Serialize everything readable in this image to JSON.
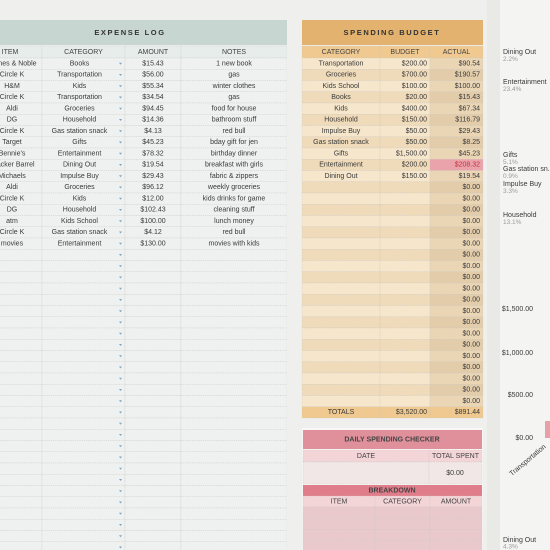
{
  "expense_log": {
    "title": "EXPENSE LOG",
    "columns": [
      "ITEM",
      "CATEGORY",
      "AMOUNT",
      "NOTES"
    ],
    "rows": [
      [
        "Barnes & Noble",
        "Books",
        "$15.43",
        "1 new book"
      ],
      [
        "Circle K",
        "Transportation",
        "$56.00",
        "gas"
      ],
      [
        "H&M",
        "Kids",
        "$55.34",
        "winter clothes"
      ],
      [
        "Circle K",
        "Transportation",
        "$34.54",
        "gas"
      ],
      [
        "Aldi",
        "Groceries",
        "$94.45",
        "food for house"
      ],
      [
        "DG",
        "Household",
        "$14.36",
        "bathroom stuff"
      ],
      [
        "Circle K",
        "Gas station snack",
        "$4.13",
        "red bull"
      ],
      [
        "Target",
        "Gifts",
        "$45.23",
        "bday gift for jen"
      ],
      [
        "Bennie's",
        "Entertainment",
        "$78.32",
        "birthday dinner"
      ],
      [
        "Cracker Barrel",
        "Dining Out",
        "$19.54",
        "breakfast with girls"
      ],
      [
        "Michaels",
        "Impulse Buy",
        "$29.43",
        "fabric & zippers"
      ],
      [
        "Aldi",
        "Groceries",
        "$96.12",
        "weekly groceries"
      ],
      [
        "Circle K",
        "Kids",
        "$12.00",
        "kids drinks for game"
      ],
      [
        "DG",
        "Household",
        "$102.43",
        "cleaning stuff"
      ],
      [
        "atm",
        "Kids School",
        "$100.00",
        "lunch money"
      ],
      [
        "Circle K",
        "Gas station snack",
        "$4.12",
        "red bull"
      ],
      [
        "movies",
        "Entertainment",
        "$130.00",
        "movies with kids"
      ]
    ]
  },
  "budget": {
    "title": "SPENDING BUDGET",
    "columns": [
      "CATEGORY",
      "BUDGET",
      "ACTUAL"
    ],
    "rows": [
      {
        "category": "Transportation",
        "budget": "$200.00",
        "actual": "$90.54"
      },
      {
        "category": "Groceries",
        "budget": "$700.00",
        "actual": "$190.57"
      },
      {
        "category": "Kids School",
        "budget": "$100.00",
        "actual": "$100.00"
      },
      {
        "category": "Books",
        "budget": "$20.00",
        "actual": "$15.43"
      },
      {
        "category": "Kids",
        "budget": "$400.00",
        "actual": "$67.34"
      },
      {
        "category": "Household",
        "budget": "$150.00",
        "actual": "$116.79"
      },
      {
        "category": "Impulse Buy",
        "budget": "$50.00",
        "actual": "$29.43"
      },
      {
        "category": "Gas station snack",
        "budget": "$50.00",
        "actual": "$8.25"
      },
      {
        "category": "Gifts",
        "budget": "$1,500.00",
        "actual": "$45.23"
      },
      {
        "category": "Entertainment",
        "budget": "$200.00",
        "actual": "$208.32",
        "over": true
      },
      {
        "category": "Dining Out",
        "budget": "$150.00",
        "actual": "$19.54"
      },
      {
        "actual": "$0.00"
      },
      {
        "actual": "$0.00"
      },
      {
        "actual": "$0.00"
      },
      {
        "actual": "$0.00"
      },
      {
        "actual": "$0.00"
      },
      {
        "actual": "$0.00"
      },
      {
        "actual": "$0.00"
      },
      {
        "actual": "$0.00"
      },
      {
        "actual": "$0.00"
      },
      {
        "actual": "$0.00"
      },
      {
        "actual": "$0.00"
      },
      {
        "actual": "$0.00"
      },
      {
        "actual": "$0.00"
      },
      {
        "actual": "$0.00"
      },
      {
        "actual": "$0.00"
      },
      {
        "actual": "$0.00"
      },
      {
        "actual": "$0.00"
      },
      {
        "actual": "$0.00"
      },
      {
        "actual": "$0.00"
      },
      {
        "actual": "$0.00"
      }
    ],
    "totals": [
      "TOTALS",
      "$3,520.00",
      "$891.44"
    ]
  },
  "checker": {
    "title": "DAILY SPENDING CHECKER",
    "columns": [
      "DATE",
      "TOTAL SPENT"
    ],
    "total": "$0.00",
    "breakdown_title": "BREAKDOWN",
    "breakdown_columns": [
      "ITEM",
      "CATEGORY",
      "AMOUNT"
    ]
  },
  "side_chart": {
    "pie_labels": [
      {
        "name": "Dining Out",
        "pct": "2.2%"
      },
      {
        "name": "Entertainment",
        "pct": "23.4%"
      },
      {
        "name": "Gifts",
        "pct": "5.1%"
      },
      {
        "name": "Gas station sn...",
        "pct": "0.9%"
      },
      {
        "name": "Impulse Buy",
        "pct": "3.3%"
      },
      {
        "name": "Household",
        "pct": "13.1%"
      }
    ],
    "axis_labels": [
      "$1,500.00",
      "$1,000.00",
      "$500.00",
      "$0.00"
    ],
    "category": "Transportation",
    "bottom_label": {
      "name": "Dining Out",
      "pct": "4.3%"
    }
  }
}
